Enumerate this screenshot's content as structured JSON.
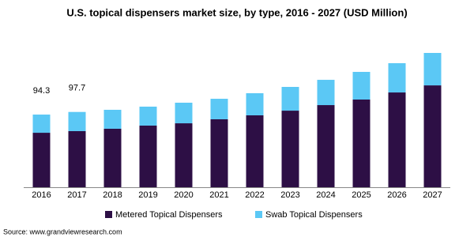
{
  "chart_data": {
    "type": "stacked-bar",
    "title": "U.S. topical dispensers market size, by type, 2016 - 2027 (USD Million)",
    "categories": [
      "2016",
      "2017",
      "2018",
      "2019",
      "2020",
      "2021",
      "2022",
      "2023",
      "2024",
      "2025",
      "2026",
      "2027"
    ],
    "series": [
      {
        "name": "Metered Topical Dispensers",
        "color": "#2d0f45",
        "values": [
          70.7,
          72.8,
          75.9,
          80.0,
          83.0,
          88.2,
          93.3,
          99.4,
          106.6,
          113.8,
          123.0,
          132.2
        ]
      },
      {
        "name": "Swab Topical Dispensers",
        "color": "#5bc8f5",
        "values": [
          23.6,
          24.9,
          24.6,
          24.6,
          26.7,
          26.6,
          28.7,
          30.8,
          32.8,
          35.9,
          38.0,
          42.1
        ]
      }
    ],
    "total_labels": [
      94.3,
      97.7,
      null,
      null,
      null,
      null,
      null,
      null,
      null,
      null,
      null,
      null
    ],
    "source": "Source: www.grandviewresearch.com"
  }
}
